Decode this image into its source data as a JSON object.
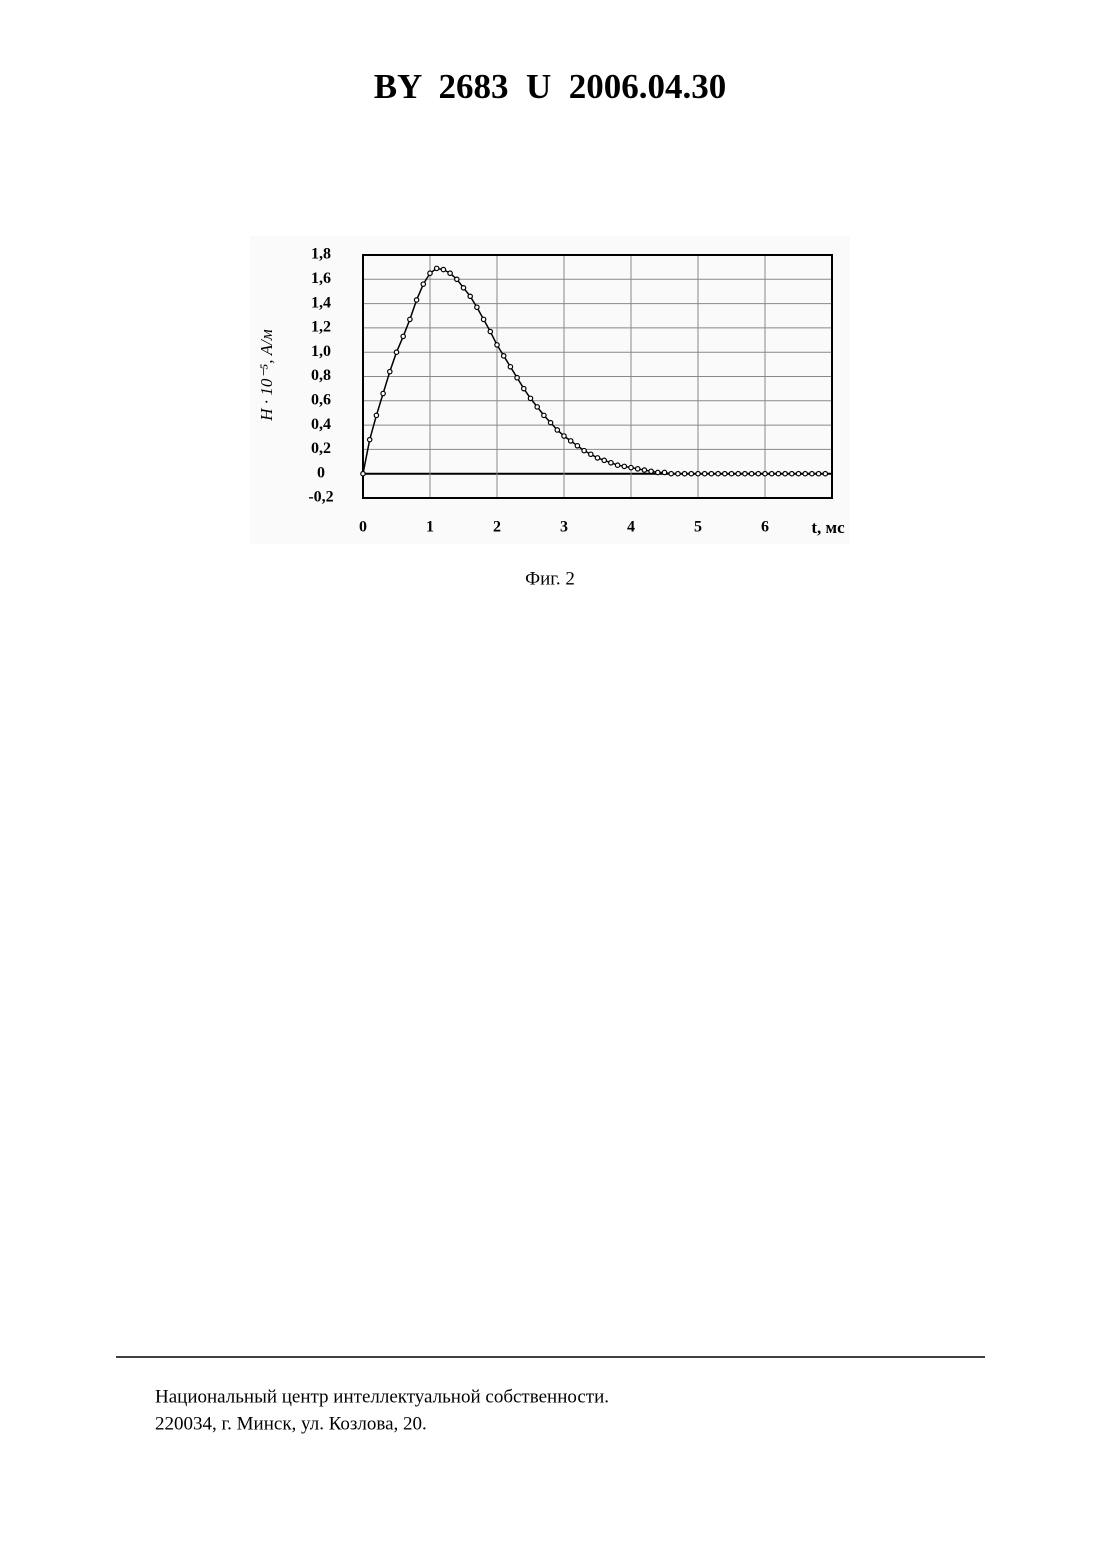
{
  "header": {
    "title": "BY  2683  U  2006.04.30"
  },
  "chart_data": {
    "type": "line",
    "y_label": "H · 10⁻⁵, А/м",
    "x_label": "t, мс",
    "x": [
      0,
      0.1,
      0.2,
      0.3,
      0.4,
      0.5,
      0.6,
      0.7,
      0.8,
      0.9,
      1.0,
      1.1,
      1.2,
      1.3,
      1.4,
      1.5,
      1.6,
      1.7,
      1.8,
      1.9,
      2.0,
      2.1,
      2.2,
      2.3,
      2.4,
      2.5,
      2.6,
      2.7,
      2.8,
      2.9,
      3.0,
      3.1,
      3.2,
      3.3,
      3.4,
      3.5,
      3.6,
      3.7,
      3.8,
      3.9,
      4.0,
      4.1,
      4.2,
      4.3,
      4.4,
      4.5,
      4.6,
      4.7,
      4.8,
      4.9,
      5.0,
      5.1,
      5.2,
      5.3,
      5.4,
      5.5,
      5.6,
      5.7,
      5.8,
      5.9,
      6.0,
      6.1,
      6.2,
      6.3,
      6.4,
      6.5,
      6.6,
      6.7,
      6.8,
      6.9
    ],
    "series": [
      {
        "color": "#000000",
        "values": [
          0,
          0.28,
          0.48,
          0.66,
          0.84,
          1.0,
          1.13,
          1.27,
          1.43,
          1.56,
          1.65,
          1.69,
          1.68,
          1.65,
          1.6,
          1.53,
          1.46,
          1.37,
          1.27,
          1.17,
          1.06,
          0.97,
          0.88,
          0.79,
          0.7,
          0.62,
          0.55,
          0.48,
          0.42,
          0.36,
          0.31,
          0.27,
          0.23,
          0.19,
          0.16,
          0.13,
          0.11,
          0.09,
          0.07,
          0.06,
          0.05,
          0.04,
          0.03,
          0.02,
          0.01,
          0.01,
          0,
          0,
          0,
          0,
          0,
          0,
          0,
          0,
          0,
          0,
          0,
          0,
          0,
          0,
          0,
          0,
          0,
          0,
          0,
          0,
          0,
          0,
          0,
          0
        ]
      }
    ],
    "xlim": [
      0,
      7
    ],
    "ylim": [
      -0.2,
      1.8
    ],
    "xticks": [
      0,
      1,
      2,
      3,
      4,
      5,
      6
    ],
    "yticks": [
      {
        "value": -0.2,
        "label": "-0,2"
      },
      0,
      {
        "value": 0.2,
        "label": "0,2"
      },
      {
        "value": 0.4,
        "label": "0,4"
      },
      {
        "value": 0.6,
        "label": "0,6"
      },
      {
        "value": 0.8,
        "label": "0,8"
      },
      {
        "value": 1.0,
        "label": "1,0"
      },
      {
        "value": 1.2,
        "label": "1,2"
      },
      {
        "value": 1.4,
        "label": "1,4"
      },
      {
        "value": 1.6,
        "label": "1,6"
      },
      {
        "value": 1.8,
        "label": "1,8"
      }
    ],
    "grid": true,
    "caption": "Фиг. 2"
  },
  "footer": {
    "lines": [
      "Национальный центр интеллектуальной собственности.",
      "220034, г. Минск, ул. Козлова, 20."
    ]
  }
}
